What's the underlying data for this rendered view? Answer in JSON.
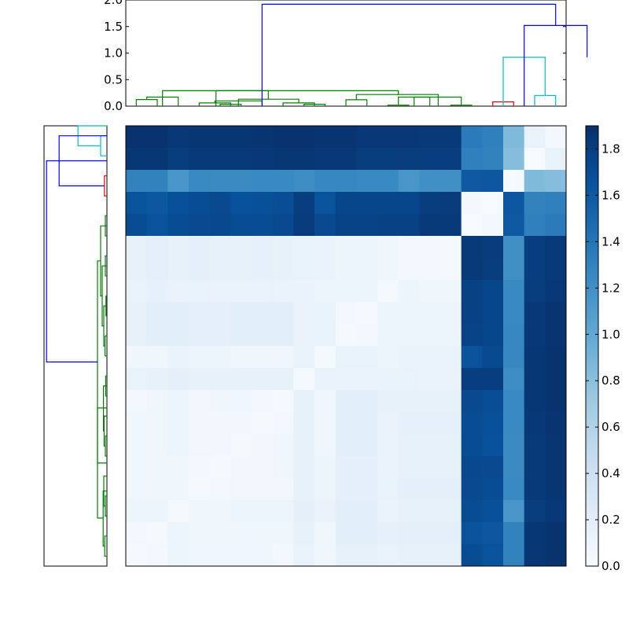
{
  "chart_data": [
    {
      "type": "dendrogram",
      "role": "top",
      "ylim": [
        0,
        2.0
      ],
      "yticks": [
        "0.0",
        "0.5",
        "1.0",
        "1.5",
        "2.0"
      ],
      "links": [
        {
          "x": [
            0.5,
            1.5
          ],
          "y": [
            0.0,
            0.125
          ],
          "color": "#008000"
        },
        {
          "x": [
            1.0,
            2.5
          ],
          "y": [
            0.125,
            0.17
          ],
          "color": "#008000"
        },
        {
          "x": [
            4.5,
            5.5
          ],
          "y": [
            0.0,
            0.035
          ],
          "color": "#008000"
        },
        {
          "x": [
            3.5,
            5.0
          ],
          "y": [
            0.0,
            0.06
          ],
          "color": "#008000"
        },
        {
          "x": [
            8.5,
            9.5
          ],
          "y": [
            0.0,
            0.035
          ],
          "color": "#008000"
        },
        {
          "x": [
            7.5,
            9.0
          ],
          "y": [
            0.0,
            0.06
          ],
          "color": "#008000"
        },
        {
          "x": [
            4.25,
            6.5
          ],
          "y": [
            0.06,
            0.1
          ],
          "color": "#008000"
        },
        {
          "x": [
            8.25,
            5.375
          ],
          "y": [
            0.06,
            0.13
          ],
          "color": "#008000"
        },
        {
          "x": [
            6.8,
            1.75
          ],
          "y": [
            0.13,
            0.29
          ],
          "color": "#008000"
        },
        {
          "x": [
            10.5,
            11.5
          ],
          "y": [
            0.0,
            0.12
          ],
          "color": "#008000"
        },
        {
          "x": [
            12.5,
            13.5
          ],
          "y": [
            0.0,
            0.02
          ],
          "color": "#008000"
        },
        {
          "x": [
            13.0,
            14.5
          ],
          "y": [
            0.02,
            0.17
          ],
          "color": "#008000"
        },
        {
          "x": [
            15.5,
            16.5
          ],
          "y": [
            0.0,
            0.02
          ],
          "color": "#008000"
        },
        {
          "x": [
            13.75,
            16.0
          ],
          "y": [
            0.17,
            0.17
          ],
          "color": "#008000"
        },
        {
          "x": [
            11.0,
            14.9
          ],
          "y": [
            0.12,
            0.22
          ],
          "color": "#008000"
        },
        {
          "x": [
            4.3,
            13.0
          ],
          "y": [
            0.29,
            0.22
          ],
          "color": "#008000"
        },
        {
          "x": [
            17.5,
            18.5
          ],
          "y": [
            0.0,
            0.08
          ],
          "color": "#ff0000"
        },
        {
          "x": [
            19.5,
            20.5
          ],
          "y": [
            0.2,
            0.2
          ],
          "color": "#00bfbf"
        },
        {
          "x": [
            18.0,
            20.0
          ],
          "y": [
            0.92,
            0.2
          ],
          "color": "#00bfbf"
        },
        {
          "x": [
            19.0,
            22.0
          ],
          "y": [
            1.52,
            0.92
          ],
          "color": "#0000ff"
        },
        {
          "x": [
            6.5,
            20.5
          ],
          "y": [
            1.92,
            1.52
          ],
          "color": "#0000ff"
        }
      ]
    },
    {
      "type": "dendrogram",
      "role": "left",
      "links": [
        {
          "x": [
            0.0,
            0.07
          ],
          "y": [
            0.5,
            1.5
          ],
          "color": "#008000"
        },
        {
          "x": [
            0.0,
            0.05
          ],
          "y": [
            2.5,
            3.5
          ],
          "color": "#008000"
        },
        {
          "x": [
            0.05,
            0.1
          ],
          "y": [
            3.0,
            4.5
          ],
          "color": "#008000"
        },
        {
          "x": [
            0.07,
            0.12
          ],
          "y": [
            1.0,
            3.75
          ],
          "color": "#008000"
        },
        {
          "x": [
            0.0,
            0.05
          ],
          "y": [
            5.5,
            6.5
          ],
          "color": "#008000"
        },
        {
          "x": [
            0.05,
            0.09
          ],
          "y": [
            6.0,
            7.5
          ],
          "color": "#008000"
        },
        {
          "x": [
            0.0,
            0.04
          ],
          "y": [
            8.5,
            9.5
          ],
          "color": "#008000"
        },
        {
          "x": [
            0.09,
            0.11
          ],
          "y": [
            6.75,
            9.0
          ],
          "color": "#008000"
        },
        {
          "x": [
            0.12,
            0.3
          ],
          "y": [
            2.4,
            7.9
          ],
          "color": "#008000"
        },
        {
          "x": [
            0.0,
            0.06
          ],
          "y": [
            10.5,
            11.5
          ],
          "color": "#008000"
        },
        {
          "x": [
            0.0,
            0.03
          ],
          "y": [
            12.5,
            13.5
          ],
          "color": "#008000"
        },
        {
          "x": [
            0.06,
            0.1
          ],
          "y": [
            11.0,
            13.0
          ],
          "color": "#008000"
        },
        {
          "x": [
            0.0,
            0.05
          ],
          "y": [
            14.5,
            15.5
          ],
          "color": "#008000"
        },
        {
          "x": [
            0.1,
            0.15
          ],
          "y": [
            12.0,
            15.0
          ],
          "color": "#008000"
        },
        {
          "x": [
            0.0,
            0.05
          ],
          "y": [
            16.5,
            17.5
          ],
          "color": "#008000"
        },
        {
          "x": [
            0.15,
            0.2
          ],
          "y": [
            13.5,
            17.0
          ],
          "color": "#008000"
        },
        {
          "x": [
            0.3,
            0.2
          ],
          "y": [
            5.15,
            15.25
          ],
          "color": "#008000"
        },
        {
          "x": [
            0.0,
            0.08
          ],
          "y": [
            18.5,
            19.5
          ],
          "color": "#ff0000"
        },
        {
          "x": [
            0.0,
            0.2
          ],
          "y": [
            20.5,
            21.5
          ],
          "color": "#00bfbf"
        },
        {
          "x": [
            0.2,
            0.92
          ],
          "y": [
            21.0,
            22.0
          ],
          "color": "#00bfbf"
        },
        {
          "x": [
            0.08,
            1.52
          ],
          "y": [
            19.0,
            21.5
          ],
          "color": "#0000ff"
        },
        {
          "x": [
            0.3,
            1.92
          ],
          "y": [
            10.2,
            20.25
          ],
          "color": "#0000ff"
        }
      ]
    },
    {
      "type": "heatmap",
      "colormap": "Blues",
      "vmin": 0.0,
      "vmax": 1.9,
      "colorbar_ticks": [
        "0.0",
        "0.2",
        "0.4",
        "0.6",
        "0.8",
        "1.0",
        "1.2",
        "1.4",
        "1.6",
        "1.8"
      ],
      "colorbar_values": [
        0.0,
        0.2,
        0.4,
        0.6,
        0.8,
        1.0,
        1.2,
        1.4,
        1.6,
        1.8
      ],
      "values": [
        [
          1.88,
          1.88,
          1.84,
          1.86,
          1.86,
          1.86,
          1.87,
          1.88,
          1.88,
          1.87,
          1.87,
          1.84,
          1.84,
          1.84,
          1.83,
          1.83,
          1.35,
          1.32,
          0.85,
          0.14,
          0.04
        ],
        [
          1.85,
          1.85,
          1.81,
          1.83,
          1.83,
          1.83,
          1.84,
          1.85,
          1.85,
          1.84,
          1.84,
          1.81,
          1.81,
          1.81,
          1.8,
          1.8,
          1.32,
          1.3,
          0.82,
          0.02,
          0.14
        ],
        [
          1.3,
          1.3,
          1.15,
          1.25,
          1.24,
          1.24,
          1.25,
          1.25,
          1.22,
          1.27,
          1.27,
          1.25,
          1.25,
          1.15,
          1.2,
          1.2,
          1.6,
          1.62,
          0.02,
          0.85,
          0.82
        ],
        [
          1.65,
          1.62,
          1.67,
          1.7,
          1.72,
          1.66,
          1.67,
          1.69,
          1.8,
          1.65,
          1.74,
          1.74,
          1.74,
          1.74,
          1.81,
          1.82,
          0.05,
          0.02,
          1.62,
          1.3,
          1.32
        ],
        [
          1.7,
          1.65,
          1.7,
          1.72,
          1.73,
          1.7,
          1.7,
          1.72,
          1.82,
          1.72,
          1.76,
          1.76,
          1.78,
          1.78,
          1.83,
          1.83,
          0.02,
          0.05,
          1.6,
          1.32,
          1.35
        ],
        [
          0.15,
          0.18,
          0.15,
          0.18,
          0.15,
          0.15,
          0.16,
          0.15,
          0.14,
          0.12,
          0.1,
          0.1,
          0.08,
          0.04,
          0.04,
          0.03,
          1.83,
          1.82,
          1.2,
          1.8,
          1.83
        ],
        [
          0.15,
          0.18,
          0.15,
          0.18,
          0.15,
          0.15,
          0.16,
          0.15,
          0.14,
          0.12,
          0.1,
          0.1,
          0.08,
          0.04,
          0.04,
          0.03,
          1.83,
          1.81,
          1.2,
          1.8,
          1.83
        ],
        [
          0.14,
          0.16,
          0.12,
          0.14,
          0.12,
          0.12,
          0.13,
          0.12,
          0.12,
          0.1,
          0.1,
          0.1,
          0.03,
          0.1,
          0.08,
          0.08,
          1.78,
          1.74,
          1.25,
          1.81,
          1.84
        ],
        [
          0.15,
          0.2,
          0.2,
          0.18,
          0.18,
          0.2,
          0.2,
          0.2,
          0.12,
          0.14,
          0.04,
          0.03,
          0.1,
          0.1,
          0.1,
          0.1,
          1.78,
          1.74,
          1.25,
          1.84,
          1.87
        ],
        [
          0.15,
          0.2,
          0.2,
          0.18,
          0.18,
          0.2,
          0.2,
          0.2,
          0.12,
          0.14,
          0.03,
          0.04,
          0.1,
          0.1,
          0.1,
          0.1,
          1.76,
          1.74,
          1.27,
          1.84,
          1.87
        ],
        [
          0.08,
          0.08,
          0.12,
          0.1,
          0.1,
          0.08,
          0.08,
          0.07,
          0.12,
          0.03,
          0.14,
          0.14,
          0.1,
          0.12,
          0.12,
          0.12,
          1.65,
          1.72,
          1.27,
          1.85,
          1.88
        ],
        [
          0.14,
          0.15,
          0.18,
          0.15,
          0.15,
          0.15,
          0.15,
          0.15,
          0.03,
          0.12,
          0.12,
          0.12,
          0.14,
          0.14,
          0.12,
          0.12,
          1.8,
          1.8,
          1.22,
          1.85,
          1.88
        ],
        [
          0.05,
          0.08,
          0.1,
          0.06,
          0.08,
          0.07,
          0.05,
          0.03,
          0.15,
          0.07,
          0.2,
          0.2,
          0.15,
          0.15,
          0.15,
          0.15,
          1.72,
          1.69,
          1.25,
          1.85,
          1.88
        ],
        [
          0.07,
          0.08,
          0.1,
          0.06,
          0.06,
          0.06,
          0.03,
          0.05,
          0.15,
          0.08,
          0.2,
          0.2,
          0.13,
          0.16,
          0.16,
          0.16,
          1.7,
          1.67,
          1.25,
          1.84,
          1.87
        ],
        [
          0.07,
          0.08,
          0.1,
          0.06,
          0.06,
          0.03,
          0.06,
          0.07,
          0.15,
          0.08,
          0.2,
          0.2,
          0.12,
          0.15,
          0.15,
          0.15,
          1.7,
          1.66,
          1.24,
          1.83,
          1.86
        ],
        [
          0.07,
          0.08,
          0.08,
          0.04,
          0.03,
          0.06,
          0.06,
          0.08,
          0.15,
          0.1,
          0.18,
          0.18,
          0.12,
          0.15,
          0.15,
          0.15,
          1.73,
          1.72,
          1.24,
          1.83,
          1.86
        ],
        [
          0.07,
          0.08,
          0.08,
          0.03,
          0.04,
          0.06,
          0.06,
          0.06,
          0.15,
          0.1,
          0.18,
          0.18,
          0.14,
          0.18,
          0.18,
          0.18,
          1.72,
          1.7,
          1.25,
          1.83,
          1.86
        ],
        [
          0.1,
          0.1,
          0.03,
          0.08,
          0.08,
          0.1,
          0.1,
          0.1,
          0.18,
          0.12,
          0.2,
          0.2,
          0.12,
          0.15,
          0.15,
          0.15,
          1.7,
          1.67,
          1.15,
          1.81,
          1.84
        ],
        [
          0.05,
          0.03,
          0.1,
          0.08,
          0.08,
          0.08,
          0.08,
          0.08,
          0.15,
          0.08,
          0.2,
          0.2,
          0.16,
          0.18,
          0.18,
          0.18,
          1.65,
          1.62,
          1.3,
          1.85,
          1.88
        ],
        [
          0.03,
          0.05,
          0.1,
          0.07,
          0.07,
          0.07,
          0.07,
          0.05,
          0.14,
          0.08,
          0.15,
          0.15,
          0.14,
          0.15,
          0.15,
          0.15,
          1.7,
          1.65,
          1.3,
          1.85,
          1.88
        ]
      ]
    }
  ]
}
